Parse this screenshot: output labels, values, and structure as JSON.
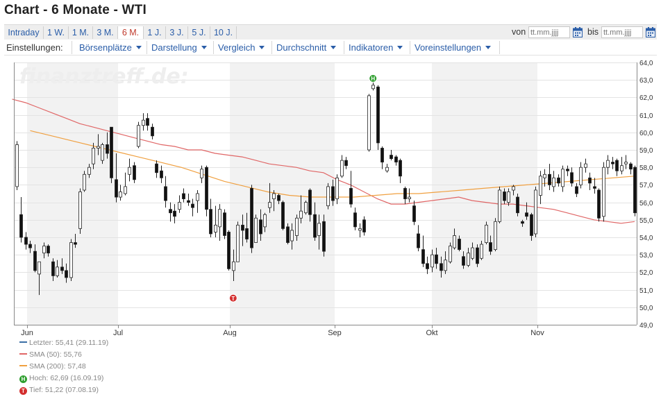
{
  "page": {
    "title": "Chart - 6 Monate - WTI"
  },
  "range_tabs": [
    {
      "label": "Intraday",
      "active": false
    },
    {
      "label": "1 W.",
      "active": false
    },
    {
      "label": "1 M.",
      "active": false
    },
    {
      "label": "3 M.",
      "active": false
    },
    {
      "label": "6 M.",
      "active": true
    },
    {
      "label": "1 J.",
      "active": false
    },
    {
      "label": "3 J.",
      "active": false
    },
    {
      "label": "5 J.",
      "active": false
    },
    {
      "label": "10 J.",
      "active": false
    }
  ],
  "date_range": {
    "from_label": "von",
    "to_label": "bis",
    "from_placeholder": "tt.mm.jjjj",
    "to_placeholder": "tt.mm.jjjj"
  },
  "menubar": {
    "settings_label": "Einstellungen:",
    "menus": [
      "Börsenplätze",
      "Darstellung",
      "Vergleich",
      "Durchschnitt",
      "Indikatoren",
      "Voreinstellungen"
    ]
  },
  "watermark": "finanztreff.de:",
  "colors": {
    "accent": "#2a5da8",
    "active_tab": "#c0392b",
    "sma50": "#e06666",
    "sma200": "#f0a040",
    "last": "#3a6ea5",
    "high": "#2e9e2e",
    "low": "#d32f2f",
    "band": "#f2f2f2"
  },
  "legend": [
    {
      "text": "Letzter: 55,41 (29.11.19)",
      "kind": "line",
      "color": "#3a6ea5"
    },
    {
      "text": "SMA (50): 55,76",
      "kind": "line",
      "color": "#e06666"
    },
    {
      "text": "SMA (200): 57,48",
      "kind": "line",
      "color": "#f0a040"
    },
    {
      "text": "Hoch: 62,69 (16.09.19)",
      "kind": "marker",
      "symbol": "H",
      "color": "#2e9e2e"
    },
    {
      "text": "Tief: 51,22 (07.08.19)",
      "kind": "marker",
      "symbol": "T",
      "color": "#d32f2f"
    }
  ],
  "chart_data": {
    "type": "candlestick",
    "y_axis": {
      "min": 49.0,
      "max": 64.0,
      "step": 1.0,
      "side": "right",
      "decimal_separator": ","
    },
    "x_axis": {
      "labels": [
        "Jun",
        "Jul",
        "Aug",
        "Sep",
        "Okt",
        "Nov"
      ]
    },
    "month_bands": "alternating",
    "grid": true,
    "candles": [
      [
        56.9,
        59.5,
        56.7,
        59.3
      ],
      [
        55.3,
        56.3,
        53.7,
        54.0
      ],
      [
        54.0,
        54.3,
        53.3,
        53.6
      ],
      [
        53.6,
        53.8,
        53.1,
        53.4
      ],
      [
        53.2,
        53.6,
        52.0,
        52.1
      ],
      [
        51.9,
        52.6,
        50.7,
        52.6
      ],
      [
        53.1,
        53.7,
        52.8,
        53.5
      ],
      [
        53.5,
        53.6,
        52.9,
        53.1
      ],
      [
        52.6,
        52.8,
        51.5,
        51.8
      ],
      [
        51.8,
        52.7,
        51.7,
        52.3
      ],
      [
        52.3,
        52.8,
        51.9,
        52.1
      ],
      [
        52.1,
        52.5,
        51.4,
        51.7
      ],
      [
        51.7,
        53.9,
        51.5,
        53.7
      ],
      [
        53.7,
        54.2,
        53.4,
        53.6
      ],
      [
        54.5,
        56.8,
        54.2,
        56.6
      ],
      [
        56.7,
        57.8,
        56.6,
        57.6
      ],
      [
        57.6,
        58.2,
        57.4,
        58.0
      ],
      [
        58.2,
        59.4,
        57.9,
        59.1
      ],
      [
        59.1,
        59.9,
        58.7,
        59.2
      ],
      [
        58.4,
        59.4,
        58.2,
        59.3
      ],
      [
        59.3,
        60.0,
        58.5,
        58.8
      ],
      [
        60.3,
        60.3,
        57.1,
        57.4
      ],
      [
        57.3,
        58.8,
        56.0,
        56.3
      ],
      [
        56.3,
        57.0,
        56.1,
        56.6
      ],
      [
        56.5,
        57.7,
        56.4,
        56.9
      ],
      [
        57.6,
        58.5,
        57.2,
        58.0
      ],
      [
        58.1,
        58.3,
        57.1,
        57.3
      ],
      [
        59.2,
        60.6,
        59.1,
        60.4
      ],
      [
        60.4,
        61.1,
        60.1,
        60.7
      ],
      [
        60.8,
        61.1,
        60.1,
        60.4
      ],
      [
        60.3,
        60.5,
        59.6,
        59.8
      ],
      [
        58.2,
        58.4,
        57.4,
        57.7
      ],
      [
        57.8,
        58.1,
        57.1,
        57.4
      ],
      [
        56.9,
        57.5,
        55.7,
        56.1
      ],
      [
        55.6,
        56.0,
        54.9,
        55.4
      ],
      [
        55.5,
        55.9,
        54.8,
        55.2
      ],
      [
        55.6,
        56.4,
        55.4,
        56.0
      ],
      [
        56.5,
        56.8,
        56.0,
        56.2
      ],
      [
        56.1,
        56.5,
        55.8,
        56.0
      ],
      [
        55.9,
        56.2,
        55.2,
        55.7
      ],
      [
        56.1,
        56.7,
        55.4,
        56.5
      ],
      [
        57.4,
        58.1,
        57.1,
        57.9
      ],
      [
        58.0,
        58.1,
        55.2,
        55.6
      ],
      [
        55.6,
        56.2,
        54.0,
        54.2
      ],
      [
        54.3,
        55.8,
        54.0,
        54.7
      ],
      [
        54.6,
        55.9,
        53.8,
        55.6
      ],
      [
        55.4,
        55.6,
        53.9,
        54.1
      ],
      [
        54.3,
        54.4,
        52.1,
        52.2
      ],
      [
        52.1,
        53.3,
        51.5,
        52.6
      ],
      [
        52.6,
        54.9,
        52.6,
        54.7
      ],
      [
        54.7,
        55.3,
        53.5,
        54.4
      ],
      [
        54.5,
        55.4,
        53.7,
        53.9
      ],
      [
        56.8,
        57.0,
        53.1,
        53.4
      ],
      [
        53.7,
        55.3,
        53.7,
        55.1
      ],
      [
        55.0,
        55.6,
        53.8,
        54.2
      ],
      [
        54.6,
        55.4,
        54.3,
        55.3
      ],
      [
        55.7,
        57.1,
        55.4,
        56.0
      ],
      [
        56.2,
        56.7,
        55.5,
        56.5
      ],
      [
        56.4,
        56.5,
        55.9,
        56.1
      ],
      [
        56.0,
        56.1,
        54.4,
        54.5
      ],
      [
        54.6,
        54.8,
        53.6,
        53.7
      ],
      [
        53.8,
        54.8,
        53.3,
        54.4
      ],
      [
        54.1,
        55.3,
        53.8,
        55.1
      ],
      [
        55.1,
        56.4,
        54.8,
        55.5
      ],
      [
        55.4,
        56.1,
        55.3,
        56.0
      ],
      [
        56.7,
        56.8,
        54.9,
        55.3
      ],
      [
        55.3,
        56.0,
        53.8,
        54.0
      ],
      [
        54.1,
        55.3,
        53.3,
        54.8
      ],
      [
        54.9,
        55.3,
        52.9,
        53.2
      ],
      [
        55.8,
        57.1,
        55.6,
        56.9
      ],
      [
        56.9,
        57.3,
        55.8,
        56.1
      ],
      [
        56.2,
        57.6,
        55.9,
        57.4
      ],
      [
        57.5,
        58.7,
        57.4,
        58.4
      ],
      [
        58.4,
        58.6,
        57.9,
        58.1
      ],
      [
        56.8,
        57.8,
        55.7,
        55.9
      ],
      [
        55.4,
        55.7,
        54.4,
        54.6
      ],
      [
        54.4,
        54.8,
        54.0,
        54.5
      ],
      [
        55.0,
        55.2,
        54.1,
        54.3
      ],
      [
        59.0,
        62.2,
        58.9,
        62.1
      ],
      [
        62.5,
        63.0,
        62.4,
        62.7
      ],
      [
        62.6,
        62.7,
        59.0,
        59.4
      ],
      [
        59.1,
        59.2,
        57.9,
        58.3
      ],
      [
        57.8,
        58.2,
        57.7,
        58.0
      ],
      [
        58.7,
        59.0,
        58.4,
        58.5
      ],
      [
        58.6,
        58.7,
        58.1,
        58.3
      ],
      [
        58.4,
        58.5,
        57.1,
        57.5
      ],
      [
        56.8,
        56.9,
        55.9,
        56.2
      ],
      [
        56.2,
        56.8,
        56.0,
        56.3
      ],
      [
        55.8,
        56.1,
        54.7,
        54.9
      ],
      [
        54.2,
        54.7,
        53.2,
        53.4
      ],
      [
        53.3,
        54.1,
        52.3,
        52.5
      ],
      [
        52.5,
        52.9,
        51.9,
        52.2
      ],
      [
        52.3,
        53.3,
        52.0,
        53.0
      ],
      [
        53.0,
        53.4,
        52.2,
        52.5
      ],
      [
        52.5,
        52.9,
        51.7,
        52.1
      ],
      [
        52.1,
        53.2,
        51.9,
        52.7
      ],
      [
        52.6,
        53.7,
        52.5,
        53.5
      ],
      [
        53.4,
        54.5,
        53.3,
        54.1
      ],
      [
        53.9,
        54.1,
        53.2,
        53.3
      ],
      [
        52.9,
        53.2,
        52.2,
        52.4
      ],
      [
        52.4,
        53.4,
        52.3,
        53.1
      ],
      [
        52.8,
        53.7,
        52.7,
        53.4
      ],
      [
        53.4,
        53.6,
        52.3,
        52.5
      ],
      [
        52.8,
        53.8,
        52.7,
        53.6
      ],
      [
        53.7,
        54.9,
        53.6,
        54.7
      ],
      [
        53.7,
        54.1,
        53.0,
        53.2
      ],
      [
        53.3,
        55.1,
        53.2,
        54.9
      ],
      [
        54.9,
        56.9,
        54.8,
        56.7
      ],
      [
        56.6,
        56.8,
        55.9,
        56.1
      ],
      [
        56.0,
        56.8,
        55.8,
        56.6
      ],
      [
        56.7,
        57.0,
        56.4,
        56.9
      ],
      [
        56.3,
        56.5,
        55.2,
        55.4
      ],
      [
        54.9,
        55.0,
        54.6,
        54.8
      ],
      [
        55.4,
        56.0,
        55.0,
        55.2
      ],
      [
        55.3,
        55.4,
        53.8,
        54.1
      ],
      [
        54.2,
        56.9,
        54.0,
        56.7
      ],
      [
        56.4,
        57.8,
        55.9,
        57.5
      ],
      [
        57.4,
        57.9,
        56.9,
        57.6
      ],
      [
        57.6,
        58.2,
        56.7,
        57.0
      ],
      [
        56.9,
        57.8,
        56.6,
        57.4
      ],
      [
        57.4,
        57.6,
        56.9,
        57.1
      ],
      [
        56.9,
        58.1,
        56.6,
        57.9
      ],
      [
        57.9,
        58.1,
        57.5,
        57.8
      ],
      [
        57.7,
        58.0,
        56.9,
        57.1
      ],
      [
        56.9,
        57.1,
        56.3,
        56.5
      ],
      [
        57.0,
        58.3,
        56.8,
        58.0
      ],
      [
        58.0,
        58.5,
        57.7,
        58.2
      ],
      [
        57.4,
        57.7,
        56.7,
        57.1
      ],
      [
        56.9,
        57.4,
        56.5,
        56.8
      ],
      [
        56.7,
        56.8,
        54.9,
        55.1
      ],
      [
        55.2,
        58.3,
        54.9,
        58.0
      ],
      [
        58.0,
        58.7,
        57.6,
        58.4
      ],
      [
        58.3,
        58.6,
        57.9,
        58.2
      ],
      [
        58.4,
        58.5,
        57.5,
        57.8
      ],
      [
        57.8,
        58.6,
        57.6,
        58.1
      ],
      [
        58.2,
        58.7,
        57.9,
        58.3
      ],
      [
        58.2,
        58.3,
        57.6,
        57.9
      ],
      [
        58.0,
        58.1,
        55.2,
        55.4
      ]
    ],
    "sma50": [
      61.9,
      61.7,
      61.4,
      61.1,
      60.8,
      60.5,
      60.3,
      60.1,
      59.9,
      59.7,
      59.5,
      59.3,
      59.2,
      59.0,
      59.0,
      58.8,
      58.7,
      58.6,
      58.4,
      58.2,
      58.1,
      58.0,
      57.8,
      57.7,
      57.3,
      57.0,
      56.6,
      56.2,
      55.9,
      55.9,
      56.0,
      56.1,
      56.2,
      56.3,
      56.1,
      56.0,
      55.9,
      55.9,
      55.8,
      55.7,
      55.6,
      55.4,
      55.2,
      55.0,
      54.9,
      54.8,
      54.9
    ],
    "sma200": [
      60.1,
      59.8,
      59.5,
      59.2,
      58.9,
      58.6,
      58.3,
      58.0,
      57.6,
      57.2,
      56.9,
      56.6,
      56.4,
      56.3,
      56.3,
      56.3,
      56.4,
      56.5,
      56.5,
      56.6,
      56.7,
      56.8,
      56.9,
      57.0,
      57.1,
      57.2,
      57.3,
      57.4,
      57.5
    ],
    "high": {
      "value": 62.69,
      "date": "16.09.19",
      "symbol": "H"
    },
    "low": {
      "value": 51.22,
      "date": "07.08.19",
      "symbol": "T"
    }
  }
}
